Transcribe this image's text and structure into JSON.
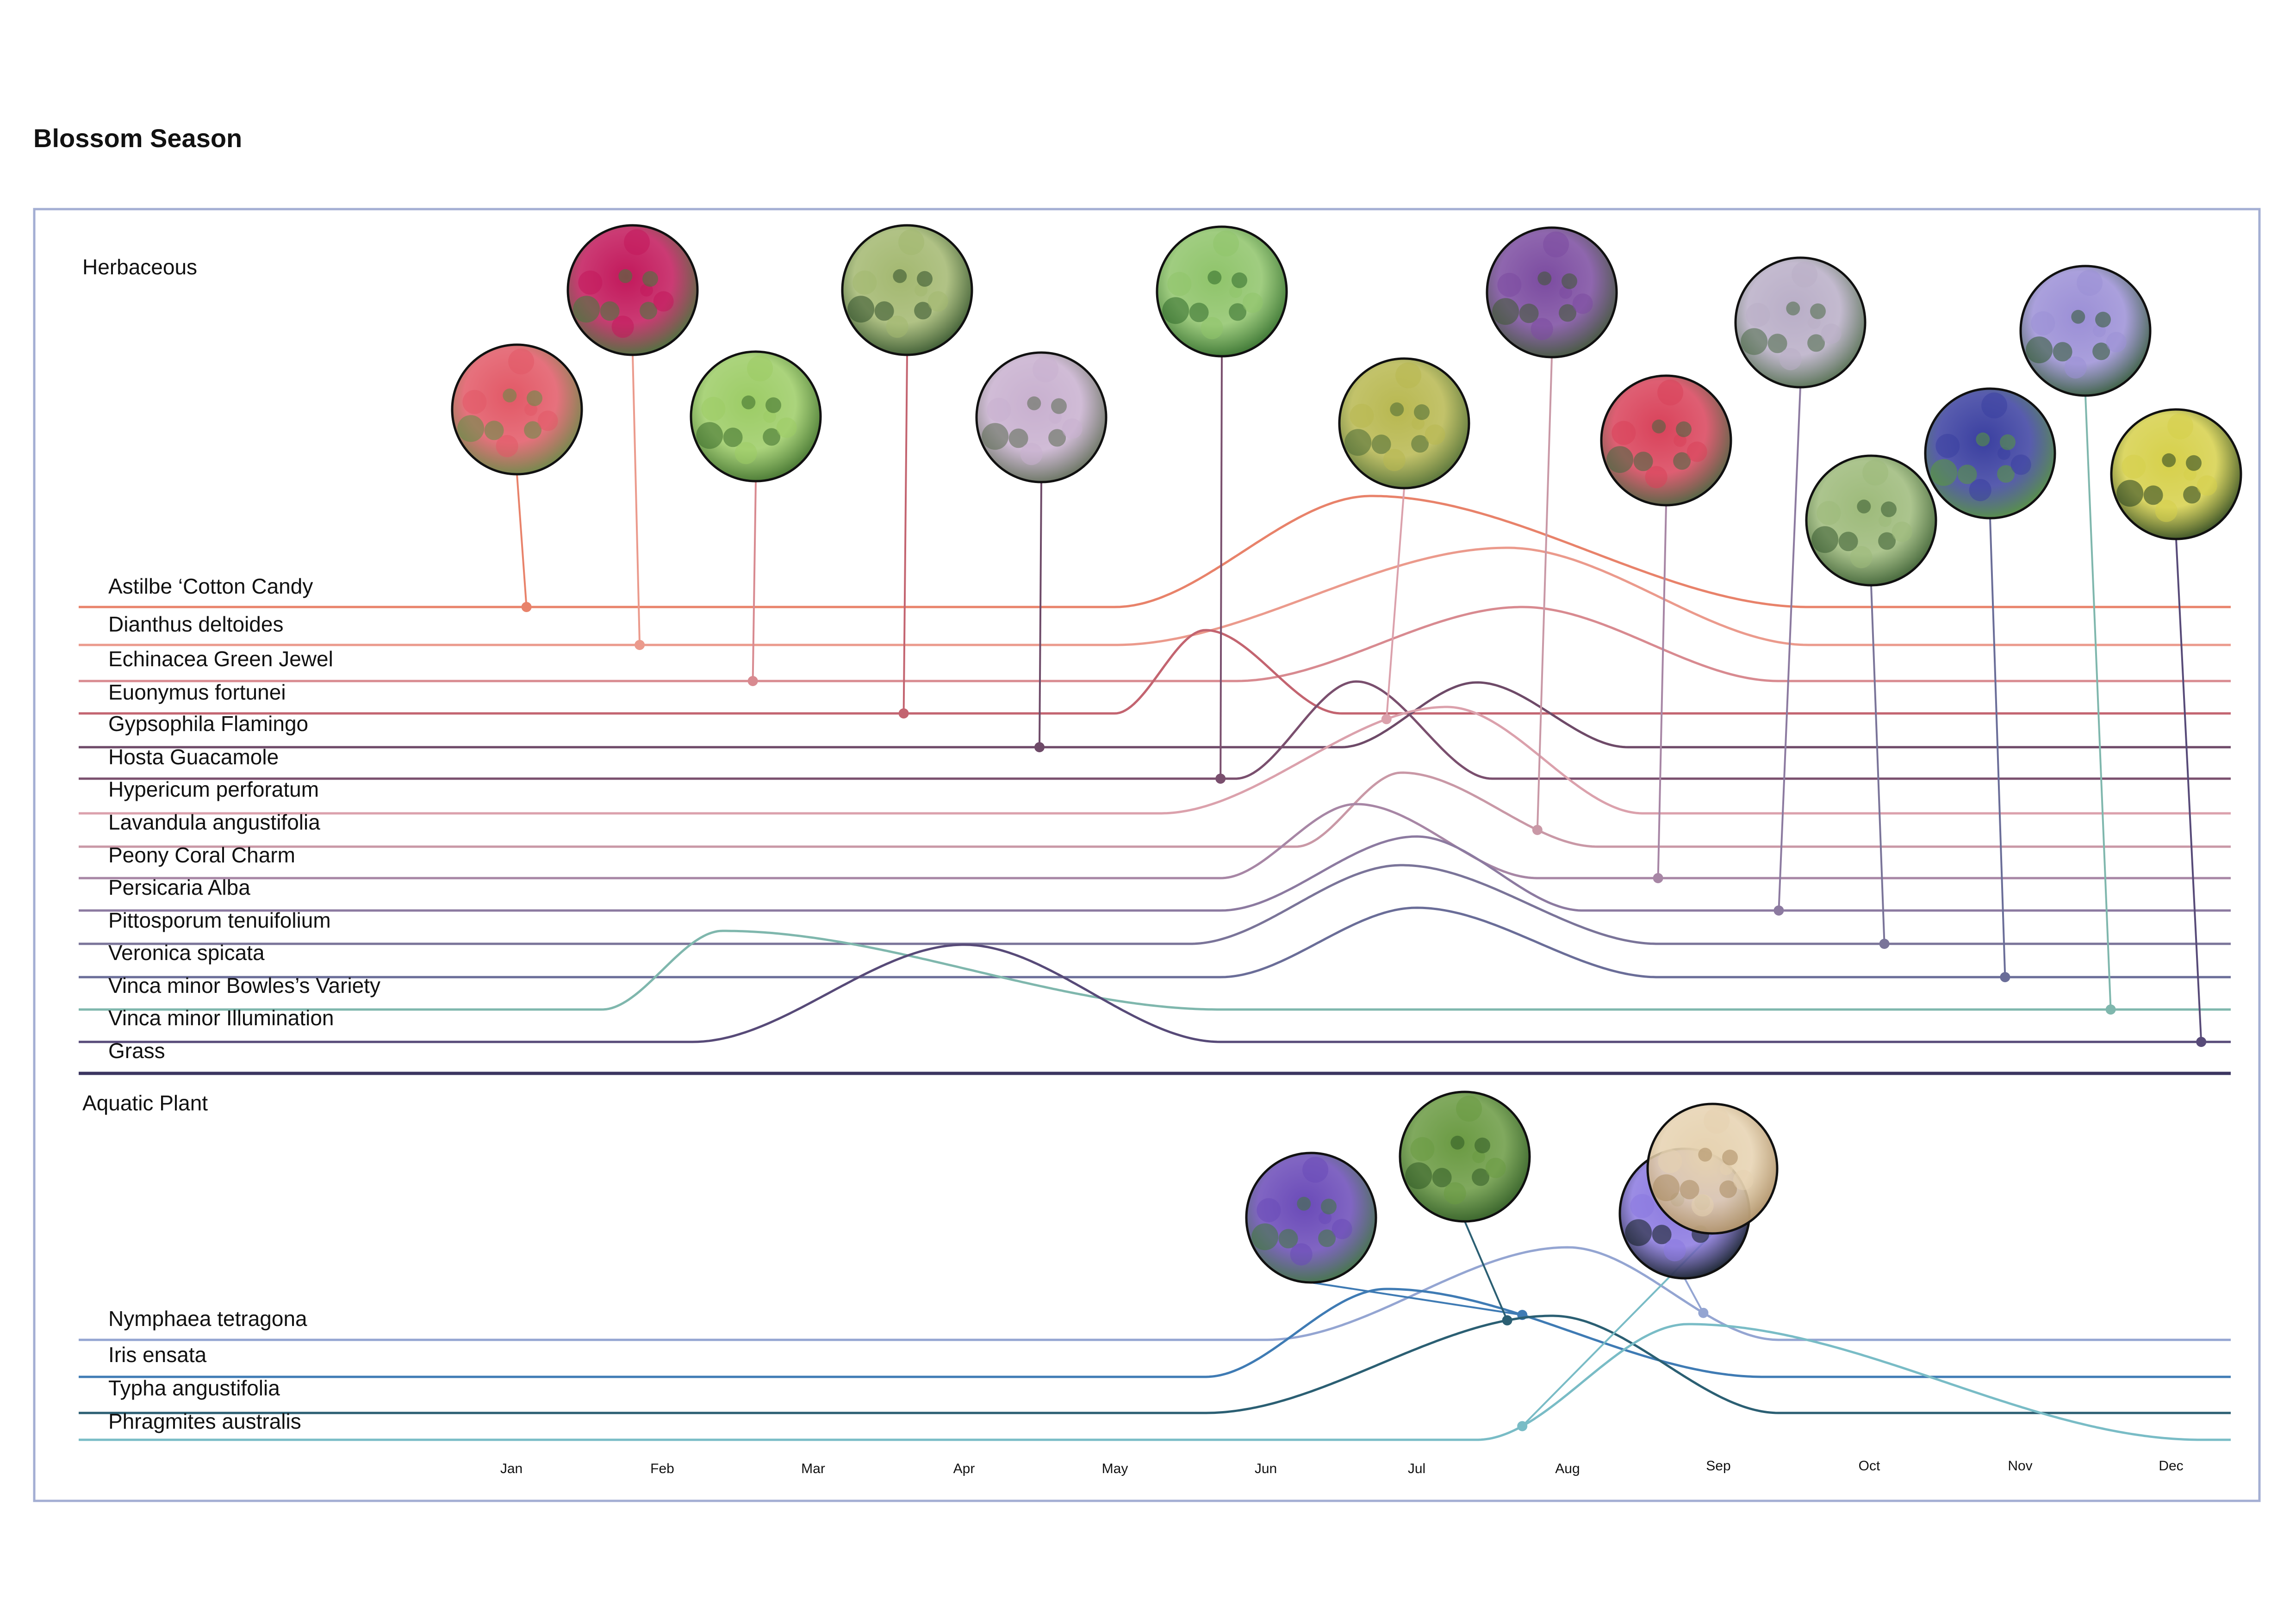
{
  "page_title": "Blossom Season",
  "chart_data": {
    "type": "line",
    "title": "Blossom Season",
    "x_axis": {
      "labels": [
        "Jan",
        "Feb",
        "Mar",
        "Apr",
        "May",
        "Jun",
        "Jul",
        "Aug",
        "Sep",
        "Oct",
        "Nov",
        "Dec"
      ],
      "range": [
        1,
        12
      ]
    },
    "sections": [
      {
        "name": "Herbaceous",
        "series": [
          {
            "name": "Astilbe ‘Cotton Candy",
            "color": "#e8826a",
            "peak": {
              "from": 5.0,
              "top": 6.7,
              "until": 9.6
            },
            "marker_month": 1.1,
            "photo": "red-flower-photo-icon"
          },
          {
            "name": "Dianthus deltoides",
            "color": "#eb9a8c",
            "peak": {
              "from": 5.0,
              "top": 7.6,
              "until": 9.6
            },
            "marker_month": 1.85,
            "photo": "pink-flower-photo-icon"
          },
          {
            "name": "Echinacea Green Jewel",
            "color": "#d88a90",
            "peak": {
              "from": 5.8,
              "top": 7.7,
              "until": 9.4
            },
            "marker_month": 2.6,
            "photo": "green-coneflower-photo-icon"
          },
          {
            "name": "Euonymus fortunei",
            "color": "#c36470",
            "peak": {
              "from": 5.0,
              "top": 5.6,
              "until": 6.5
            },
            "marker_month": 3.6,
            "photo": "variegated-shrub-photo-icon"
          },
          {
            "name": "Gypsophila Flamingo",
            "color": "#6e4a68",
            "peak": {
              "from": 6.5,
              "top": 7.4,
              "until": 8.4
            },
            "marker_month": 4.5,
            "photo": "babys-breath-photo-icon"
          },
          {
            "name": "Hosta Guacamole",
            "color": "#7a4f6e",
            "peak": {
              "from": 5.8,
              "top": 6.6,
              "until": 7.5
            },
            "marker_month": 5.7,
            "photo": "hosta-leaf-photo-icon"
          },
          {
            "name": "Hypericum perforatum",
            "color": "#dba1ac",
            "peak": {
              "from": 5.3,
              "top": 7.2,
              "until": 8.5
            },
            "marker_month": 6.8,
            "photo": "hypericum-photo-icon"
          },
          {
            "name": "Lavandula angustifolia",
            "color": "#c998a6",
            "peak": {
              "from": 6.2,
              "top": 6.9,
              "until": 8.2
            },
            "marker_month": 7.8,
            "photo": "lavender-photo-icon"
          },
          {
            "name": "Peony Coral Charm",
            "color": "#a786a5",
            "peak": {
              "from": 5.7,
              "top": 6.6,
              "until": 7.8
            },
            "marker_month": 8.6,
            "photo": "peony-photo-icon"
          },
          {
            "name": "Persicaria Alba",
            "color": "#8c7aa0",
            "peak": {
              "from": 5.7,
              "top": 7.0,
              "until": 8.1
            },
            "marker_month": 9.4,
            "photo": "persicaria-photo-icon"
          },
          {
            "name": "Pittosporum tenuifolium",
            "color": "#7a7499",
            "peak": {
              "from": 5.5,
              "top": 6.9,
              "until": 8.6
            },
            "marker_month": 10.1,
            "photo": "pittosporum-photo-icon"
          },
          {
            "name": "Veronica spicata",
            "color": "#6a6d98",
            "peak": {
              "from": 5.7,
              "top": 7.0,
              "until": 8.6
            },
            "marker_month": 10.9,
            "photo": "veronica-photo-icon"
          },
          {
            "name": "Vinca minor Bowles’s Variety",
            "color": "#7fb7ad",
            "peak": {
              "from": 1.6,
              "top": 2.4,
              "until": 5.7
            },
            "marker_month": 11.6,
            "photo": "periwinkle-photo-icon"
          },
          {
            "name": "Vinca minor Illumination",
            "color": "#574a78",
            "peak": {
              "from": 2.2,
              "top": 4.0,
              "until": 5.7
            },
            "marker_month": 12.2,
            "photo": "variegated-vinca-photo-icon"
          },
          {
            "name": "Grass",
            "color": "#3b3560"
          }
        ]
      },
      {
        "name": "Aquatic Plant",
        "series": [
          {
            "name": "Nymphaea tetragona",
            "color": "#94a5d2",
            "peak": {
              "from": 6.0,
              "top": 8.0,
              "until": 9.4
            },
            "marker_month": 8.9,
            "photo": "water-lily-photo-icon"
          },
          {
            "name": "Iris ensata",
            "color": "#3f7bb4",
            "peak": {
              "from": 5.6,
              "top": 6.8,
              "until": 9.3
            },
            "marker_month": 7.7,
            "photo": "iris-photo-icon"
          },
          {
            "name": "Typha angustifolia",
            "color": "#2b5f73",
            "peak": {
              "from": 5.6,
              "top": 7.9,
              "until": 9.4
            },
            "marker_month": 7.6,
            "photo": "cattail-photo-icon"
          },
          {
            "name": "Phragmites australis",
            "color": "#79bcc6",
            "peak": {
              "from": 7.4,
              "top": 8.8,
              "until": 12.2
            },
            "marker_month": 7.7,
            "photo": "reed-grass-photo-icon"
          }
        ]
      }
    ]
  }
}
